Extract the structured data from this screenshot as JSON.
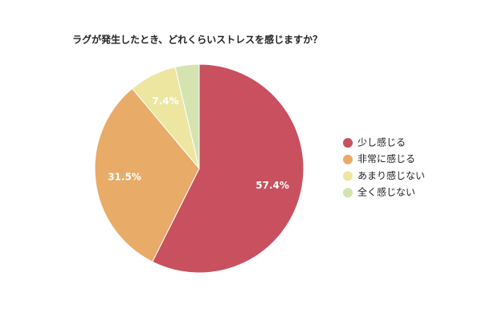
{
  "chart_data": {
    "type": "pie",
    "title": "ラグが発生したとき、どれくらいストレスを感じますか？",
    "categories": [
      "少し感じる",
      "非常に感じる",
      "あまり感じない",
      "全く感じない"
    ],
    "values": [
      57.4,
      31.5,
      7.4,
      3.7
    ],
    "value_labels": [
      "57.4%",
      "31.5%",
      "7.4%",
      null
    ],
    "colors": [
      "#c9505f",
      "#e8ab68",
      "#ede6a0",
      "#d5e3b0"
    ],
    "legend": "right"
  }
}
